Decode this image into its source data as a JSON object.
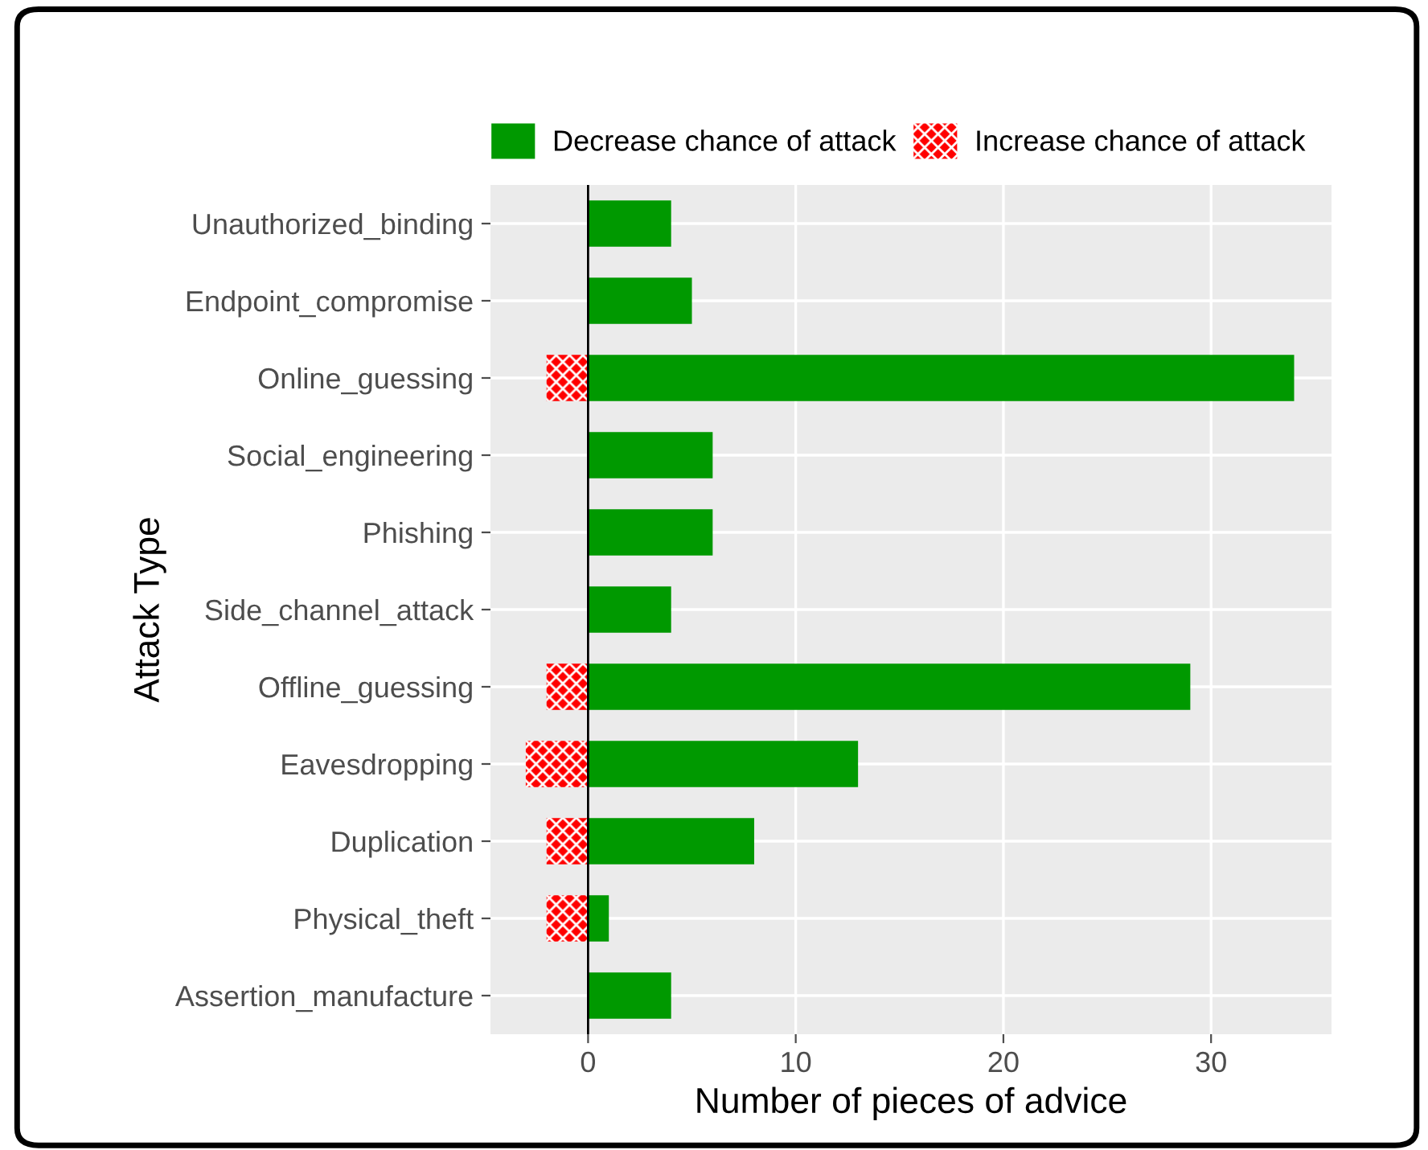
{
  "chart_data": {
    "type": "bar",
    "orientation": "horizontal",
    "xlabel": "Number of pieces of advice",
    "ylabel": "Attack Type",
    "categories": [
      "Unauthorized_binding",
      "Endpoint_compromise",
      "Online_guessing",
      "Social_engineering",
      "Phishing",
      "Side_channel_attack",
      "Offline_guessing",
      "Eavesdropping",
      "Duplication",
      "Physical_theft",
      "Assertion_manufacture"
    ],
    "series": [
      {
        "name": "Decrease chance of attack",
        "color": "#009900",
        "values": [
          4,
          5,
          34,
          6,
          6,
          4,
          29,
          13,
          8,
          1,
          4
        ]
      },
      {
        "name": "Increase chance of attack",
        "color": "#ff0000",
        "values": [
          null,
          null,
          -2,
          null,
          null,
          null,
          -2,
          -3,
          -2,
          -2,
          null
        ]
      }
    ],
    "xlim": [
      -4.7,
      35.8
    ],
    "xticks": [
      0,
      10,
      20,
      30
    ],
    "ref_lines": [
      {
        "axis": "x",
        "value": 0,
        "color": "#000000"
      }
    ],
    "grid": true,
    "legend": "top right"
  }
}
